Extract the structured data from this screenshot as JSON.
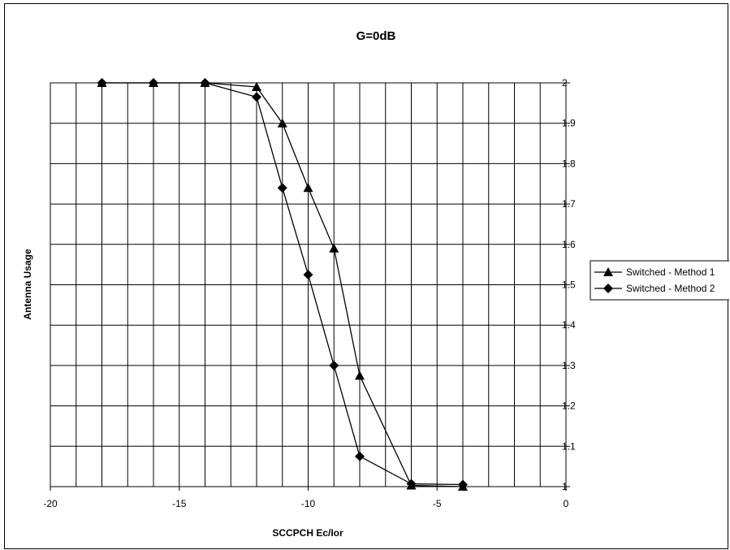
{
  "chart_data": {
    "type": "line",
    "title": "G=0dB",
    "xlabel": "SCCPCH Ec/Ior",
    "ylabel": "Antenna Usage",
    "xlim": [
      -20,
      0
    ],
    "ylim": [
      1,
      2
    ],
    "x_ticks": [
      "-20",
      "-15",
      "-10",
      "-5",
      "0"
    ],
    "y_ticks": [
      "1",
      "1.1",
      "1.2",
      "1.3",
      "1.4",
      "1.5",
      "1.6",
      "1.7",
      "1.8",
      "1.9",
      "2"
    ],
    "x_minor_step": 1,
    "y_step": 0.1,
    "grid": true,
    "y_axis_side": "right",
    "legend_position": "right",
    "series": [
      {
        "name": "Switched - Method 1",
        "marker": "triangle",
        "color": "#000000",
        "x": [
          -18,
          -16,
          -14,
          -12,
          -11,
          -10,
          -9,
          -8,
          -6,
          -4
        ],
        "y": [
          2.0,
          2.0,
          2.0,
          1.99,
          1.9,
          1.74,
          1.59,
          1.275,
          1.003,
          1.0
        ]
      },
      {
        "name": "Switched - Method 2",
        "marker": "diamond",
        "color": "#000000",
        "x": [
          -18,
          -16,
          -14,
          -12,
          -11,
          -10,
          -9,
          -8,
          -6,
          -4
        ],
        "y": [
          2.0,
          2.0,
          2.0,
          1.965,
          1.74,
          1.525,
          1.3,
          1.075,
          1.007,
          1.005
        ]
      }
    ]
  }
}
